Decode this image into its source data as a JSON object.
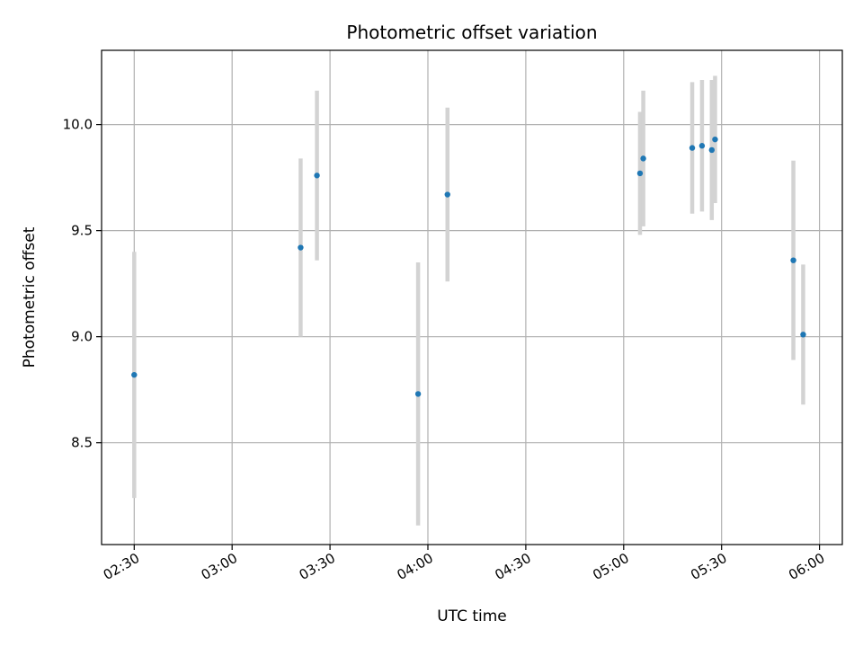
{
  "chart_data": {
    "type": "scatter",
    "title": "Photometric offset variation",
    "xlabel": "UTC time",
    "ylabel": "Photometric offset",
    "x_axis_type": "time",
    "xlim": [
      "02:20",
      "06:07"
    ],
    "ylim": [
      8.02,
      10.35
    ],
    "x_ticks": [
      "02:30",
      "03:00",
      "03:30",
      "04:00",
      "04:30",
      "05:00",
      "05:30",
      "06:00"
    ],
    "y_ticks": [
      8.5,
      9.0,
      9.5,
      10.0
    ],
    "y_tick_labels": [
      "8.5",
      "9.0",
      "9.5",
      "10.0"
    ],
    "grid": true,
    "point_color": "#1f77b4",
    "error_bar_color": "#d3d3d3",
    "series": [
      {
        "points": [
          {
            "time": "02:30",
            "y": 8.82,
            "err": 0.58
          },
          {
            "time": "03:21",
            "y": 9.42,
            "err": 0.42
          },
          {
            "time": "03:26",
            "y": 9.76,
            "err": 0.4
          },
          {
            "time": "03:57",
            "y": 8.73,
            "err": 0.62
          },
          {
            "time": "04:06",
            "y": 9.67,
            "err": 0.41
          },
          {
            "time": "05:05",
            "y": 9.77,
            "err": 0.29
          },
          {
            "time": "05:06",
            "y": 9.84,
            "err": 0.32
          },
          {
            "time": "05:21",
            "y": 9.89,
            "err": 0.31
          },
          {
            "time": "05:24",
            "y": 9.9,
            "err": 0.31
          },
          {
            "time": "05:27",
            "y": 9.88,
            "err": 0.33
          },
          {
            "time": "05:28",
            "y": 9.93,
            "err": 0.3
          },
          {
            "time": "05:52",
            "y": 9.36,
            "err": 0.47
          },
          {
            "time": "05:55",
            "y": 9.01,
            "err": 0.33
          }
        ]
      }
    ]
  }
}
